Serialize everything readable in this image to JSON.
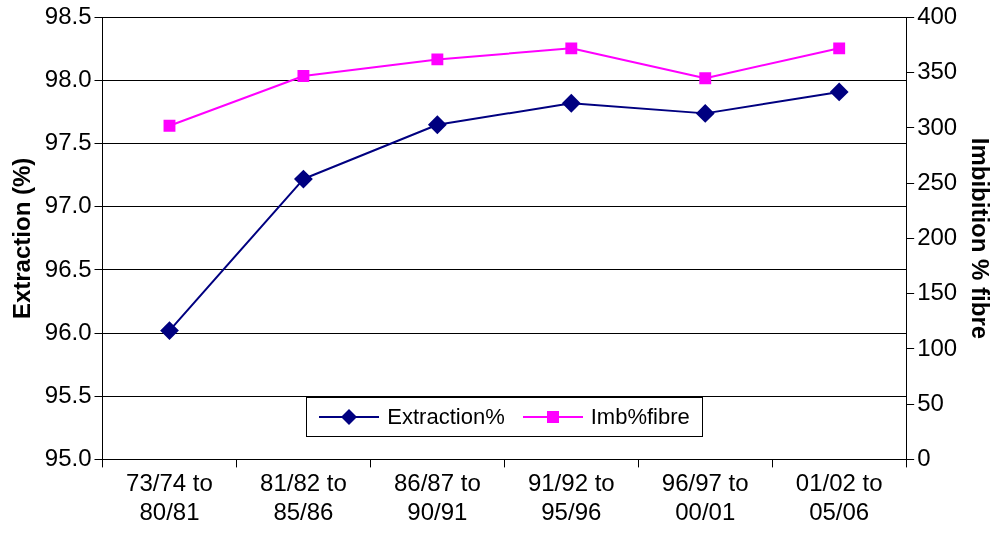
{
  "chart_data": {
    "type": "line",
    "ylabel": "Extraction (%)",
    "y2label": "Imbibition % fibre",
    "categories": [
      "73/74 to 80/81",
      "81/82 to 85/86",
      "86/87 to 90/91",
      "91/92 to 95/96",
      "96/97 to 00/01",
      "01/02 to 05/06"
    ],
    "series": [
      {
        "name": "Extraction%",
        "color": "#000080",
        "marker": "diamond",
        "values": [
          96.02,
          97.22,
          97.65,
          97.82,
          97.74,
          97.91
        ]
      },
      {
        "name": "Imb%fibre",
        "color": "#ff00ff",
        "marker": "square",
        "axis": "y2",
        "values": [
          302,
          347,
          362,
          372,
          345,
          372
        ]
      }
    ],
    "ylim": [
      95.0,
      98.5
    ],
    "yticks": [
      {
        "value": 95,
        "label": "95.0"
      },
      95.5,
      {
        "value": 96,
        "label": "96.0"
      },
      96.5,
      {
        "value": 97,
        "label": "97.0"
      },
      97.5,
      {
        "value": 98,
        "label": "98.0"
      },
      98.5
    ],
    "y2lim": [
      0,
      400
    ],
    "y2ticks": [
      0,
      50,
      100,
      150,
      200,
      250,
      300,
      350,
      400
    ],
    "grid": "y",
    "legend": "bottom",
    "line_style": "solid"
  }
}
